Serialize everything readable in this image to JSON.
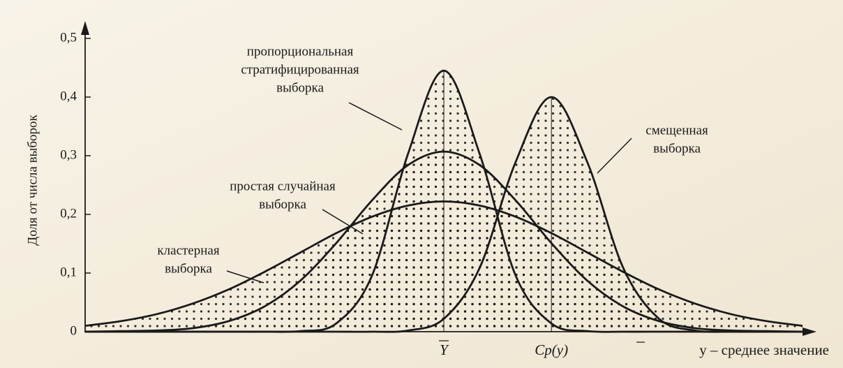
{
  "chart_data": {
    "type": "line",
    "ylabel": "Доля от числа выборок",
    "xlabel": "y – среднее значение",
    "x": [
      0,
      5,
      10,
      15,
      20,
      25,
      30,
      35,
      40,
      45,
      50,
      55,
      60,
      65,
      70,
      75,
      80,
      85,
      90,
      95,
      100
    ],
    "xlim": [
      0,
      100
    ],
    "xticks": [
      {
        "value": 50,
        "label": "Y"
      },
      {
        "value": 65,
        "label": "Cp(y)"
      }
    ],
    "ylim": [
      0,
      0.5
    ],
    "yticks": [
      0,
      {
        "value": 0.1,
        "label": "0,1"
      },
      {
        "value": 0.2,
        "label": "0,2"
      },
      {
        "value": 0.3,
        "label": "0,3"
      },
      {
        "value": 0.4,
        "label": "0,4"
      },
      {
        "value": 0.5,
        "label": "0,5"
      }
    ],
    "series": [
      {
        "name": [
          "кластерная",
          "выборка"
        ],
        "color": "#1a1a1a",
        "values": [
          0.01,
          0.018,
          0.03,
          0.048,
          0.072,
          0.102,
          0.135,
          0.168,
          0.196,
          0.215,
          0.222,
          0.215,
          0.196,
          0.168,
          0.135,
          0.102,
          0.072,
          0.048,
          0.03,
          0.018,
          0.01
        ]
      },
      {
        "name": [
          "простая случайная",
          "выборка"
        ],
        "color": "#1a1a1a",
        "values": [
          0,
          0.001,
          0.002,
          0.006,
          0.018,
          0.043,
          0.087,
          0.151,
          0.224,
          0.284,
          0.307,
          0.284,
          0.224,
          0.151,
          0.087,
          0.043,
          0.018,
          0.006,
          0.002,
          0.001,
          0
        ]
      },
      {
        "name": [
          "пропорциональная",
          "стратифицированная",
          "выборка"
        ],
        "color": "#1a1a1a",
        "values": [
          0,
          0,
          0,
          0,
          0,
          0,
          0.001,
          0.014,
          0.096,
          0.303,
          0.445,
          0.303,
          0.096,
          0.014,
          0.001,
          0,
          0,
          0,
          0,
          0,
          0
        ]
      },
      {
        "name": [
          "смещенная",
          "выборка"
        ],
        "color": "#1a1a1a",
        "values": [
          0,
          0,
          0,
          0,
          0,
          0,
          0,
          0,
          0,
          0.002,
          0.022,
          0.109,
          0.289,
          0.4,
          0.289,
          0.109,
          0.022,
          0.002,
          0,
          0,
          0
        ]
      }
    ]
  }
}
